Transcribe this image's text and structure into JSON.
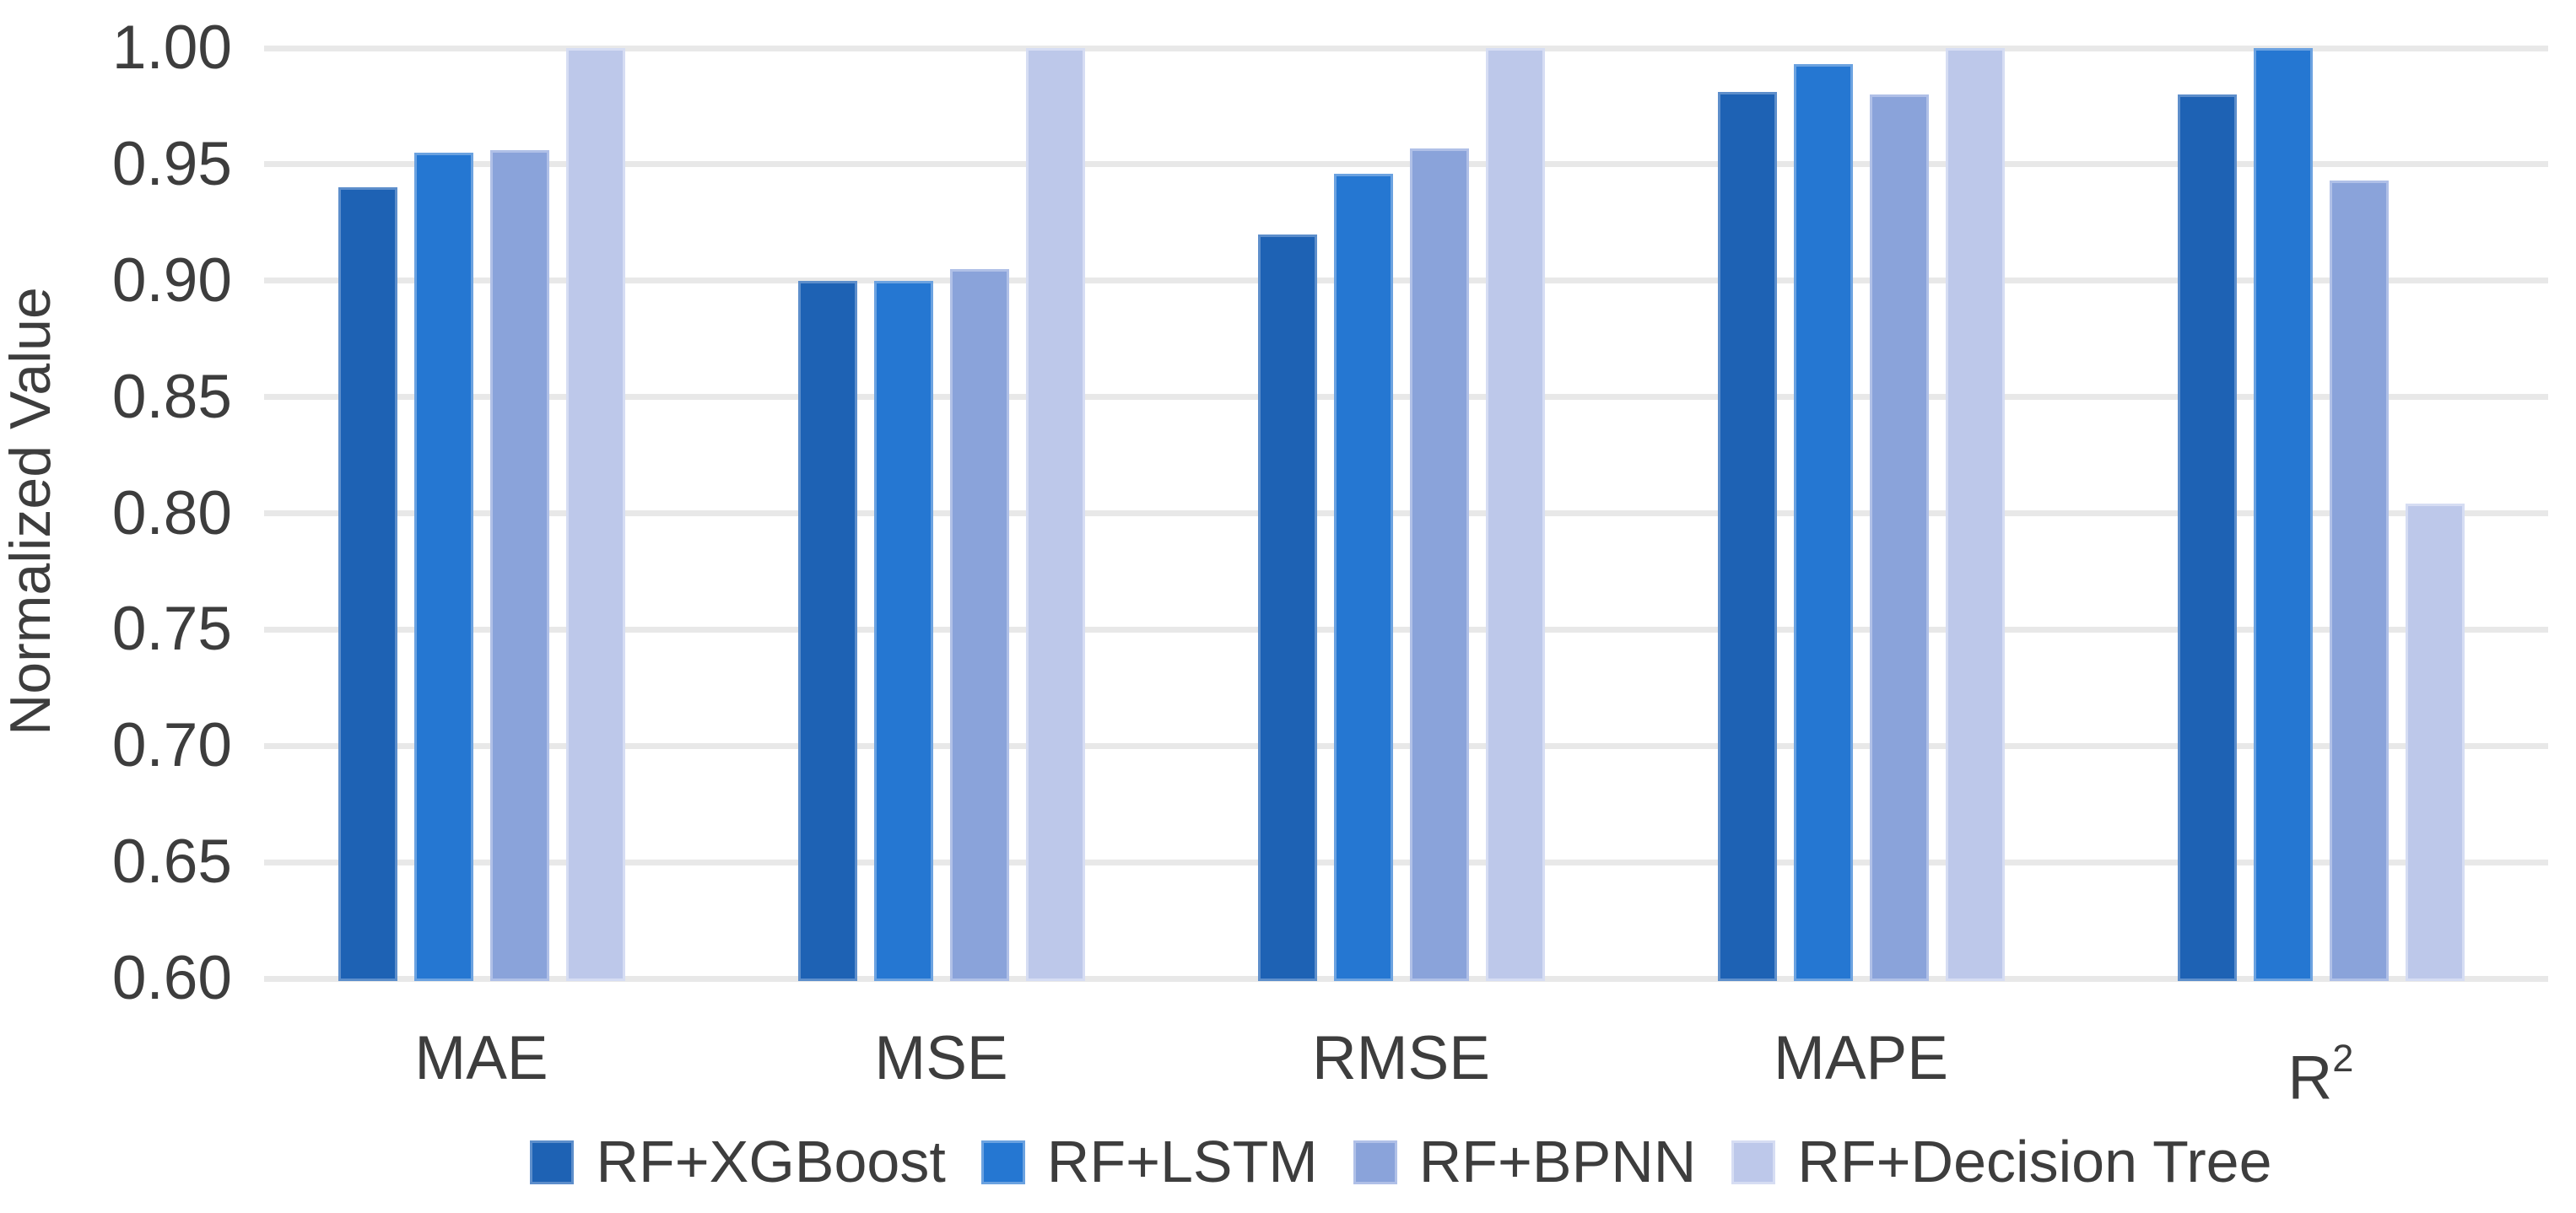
{
  "chart_data": {
    "type": "bar",
    "title": "",
    "xlabel": "",
    "ylabel": "Normalized Value",
    "ylim": [
      0.6,
      1.0
    ],
    "ytick_step": 0.05,
    "ytick_labels": [
      "1.00",
      "0.95",
      "0.90",
      "0.85",
      "0.80",
      "0.75",
      "0.70",
      "0.65",
      "0.60"
    ],
    "grid": true,
    "legend_position": "bottom",
    "background_color": "#ffffff",
    "gridline_color": "#e8e8e8",
    "text_color": "#3d3d3d",
    "categories": [
      {
        "label": "MAE",
        "sup": ""
      },
      {
        "label": "MSE",
        "sup": ""
      },
      {
        "label": "RMSE",
        "sup": ""
      },
      {
        "label": "MAPE",
        "sup": ""
      },
      {
        "label": "R",
        "sup": "2"
      }
    ],
    "series": [
      {
        "name": "RF+XGBoost",
        "color": "#1e62b4",
        "edge_color": "#5d8ecb",
        "values": [
          0.94,
          0.9,
          0.92,
          0.981,
          0.98
        ]
      },
      {
        "name": "RF+LSTM",
        "color": "#2577d2",
        "edge_color": "#6ba2e0",
        "values": [
          0.955,
          0.9,
          0.946,
          0.993,
          1.0
        ]
      },
      {
        "name": "RF+BPNN",
        "color": "#8aa3da",
        "edge_color": "#b0c0e7",
        "values": [
          0.956,
          0.905,
          0.957,
          0.98,
          0.943
        ]
      },
      {
        "name": "RF+Decision Tree",
        "color": "#bdc8ea",
        "edge_color": "#d6ddf3",
        "values": [
          1.0,
          1.0,
          1.0,
          1.0,
          0.804
        ]
      }
    ]
  }
}
